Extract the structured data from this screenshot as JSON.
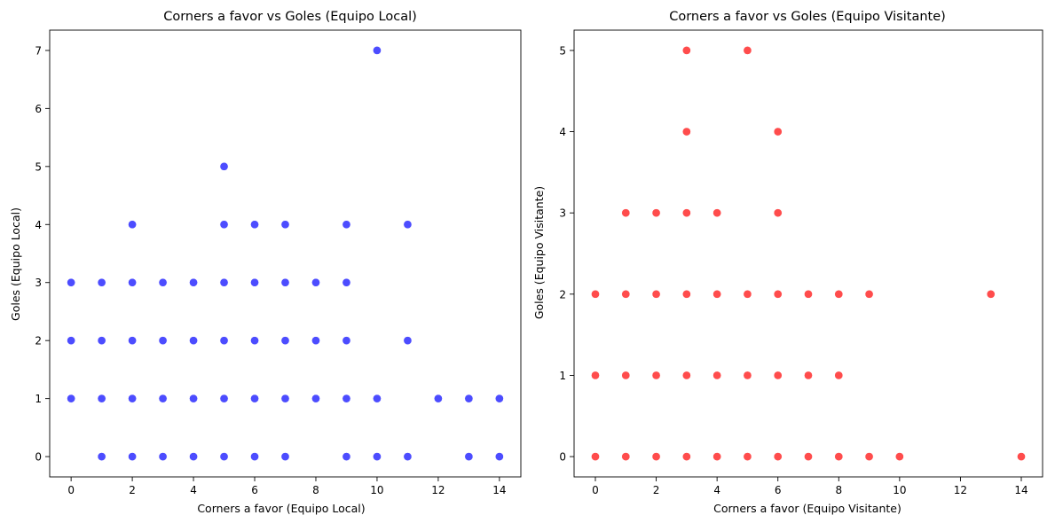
{
  "chart_data": [
    {
      "type": "scatter",
      "title": "Corners a favor vs Goles (Equipo Local)",
      "xlabel": "Corners a favor (Equipo Local)",
      "ylabel": "Goles (Equipo Local)",
      "xlim": [
        -0.7,
        14.7
      ],
      "ylim": [
        -0.35,
        7.35
      ],
      "xticks": [
        "0",
        "2",
        "4",
        "6",
        "8",
        "10",
        "12",
        "14"
      ],
      "yticks": [
        "0",
        "1",
        "2",
        "3",
        "4",
        "5",
        "6",
        "7"
      ],
      "color": "#0000ff",
      "grid": false,
      "points": [
        [
          0,
          1
        ],
        [
          0,
          2
        ],
        [
          0,
          3
        ],
        [
          1,
          0
        ],
        [
          1,
          1
        ],
        [
          1,
          2
        ],
        [
          1,
          3
        ],
        [
          2,
          0
        ],
        [
          2,
          1
        ],
        [
          2,
          2
        ],
        [
          2,
          3
        ],
        [
          2,
          4
        ],
        [
          3,
          0
        ],
        [
          3,
          1
        ],
        [
          3,
          2
        ],
        [
          3,
          3
        ],
        [
          4,
          0
        ],
        [
          4,
          1
        ],
        [
          4,
          2
        ],
        [
          4,
          3
        ],
        [
          5,
          0
        ],
        [
          5,
          1
        ],
        [
          5,
          2
        ],
        [
          5,
          3
        ],
        [
          5,
          4
        ],
        [
          5,
          5
        ],
        [
          6,
          0
        ],
        [
          6,
          1
        ],
        [
          6,
          2
        ],
        [
          6,
          3
        ],
        [
          6,
          4
        ],
        [
          7,
          0
        ],
        [
          7,
          1
        ],
        [
          7,
          2
        ],
        [
          7,
          3
        ],
        [
          7,
          4
        ],
        [
          8,
          1
        ],
        [
          8,
          2
        ],
        [
          8,
          3
        ],
        [
          9,
          0
        ],
        [
          9,
          1
        ],
        [
          9,
          2
        ],
        [
          9,
          3
        ],
        [
          9,
          4
        ],
        [
          10,
          0
        ],
        [
          10,
          1
        ],
        [
          10,
          7
        ],
        [
          11,
          0
        ],
        [
          11,
          2
        ],
        [
          11,
          4
        ],
        [
          12,
          1
        ],
        [
          13,
          0
        ],
        [
          13,
          1
        ],
        [
          14,
          0
        ],
        [
          14,
          1
        ]
      ]
    },
    {
      "type": "scatter",
      "title": "Corners a favor vs Goles (Equipo Visitante)",
      "xlabel": "Corners a favor (Equipo Visitante)",
      "ylabel": "Goles (Equipo Visitante)",
      "xlim": [
        -0.7,
        14.7
      ],
      "ylim": [
        -0.25,
        5.25
      ],
      "xticks": [
        "0",
        "2",
        "4",
        "6",
        "8",
        "10",
        "12",
        "14"
      ],
      "yticks": [
        "0",
        "1",
        "2",
        "3",
        "4",
        "5"
      ],
      "color": "#ff0000",
      "grid": false,
      "points": [
        [
          0,
          0
        ],
        [
          0,
          1
        ],
        [
          0,
          2
        ],
        [
          1,
          0
        ],
        [
          1,
          1
        ],
        [
          1,
          2
        ],
        [
          1,
          3
        ],
        [
          2,
          0
        ],
        [
          2,
          1
        ],
        [
          2,
          2
        ],
        [
          2,
          3
        ],
        [
          3,
          0
        ],
        [
          3,
          1
        ],
        [
          3,
          2
        ],
        [
          3,
          3
        ],
        [
          3,
          4
        ],
        [
          3,
          5
        ],
        [
          4,
          0
        ],
        [
          4,
          1
        ],
        [
          4,
          2
        ],
        [
          4,
          3
        ],
        [
          5,
          0
        ],
        [
          5,
          1
        ],
        [
          5,
          2
        ],
        [
          5,
          5
        ],
        [
          6,
          0
        ],
        [
          6,
          1
        ],
        [
          6,
          2
        ],
        [
          6,
          3
        ],
        [
          6,
          4
        ],
        [
          7,
          0
        ],
        [
          7,
          1
        ],
        [
          7,
          2
        ],
        [
          8,
          0
        ],
        [
          8,
          1
        ],
        [
          8,
          2
        ],
        [
          9,
          0
        ],
        [
          9,
          2
        ],
        [
          10,
          0
        ],
        [
          13,
          2
        ],
        [
          14,
          0
        ]
      ]
    }
  ]
}
